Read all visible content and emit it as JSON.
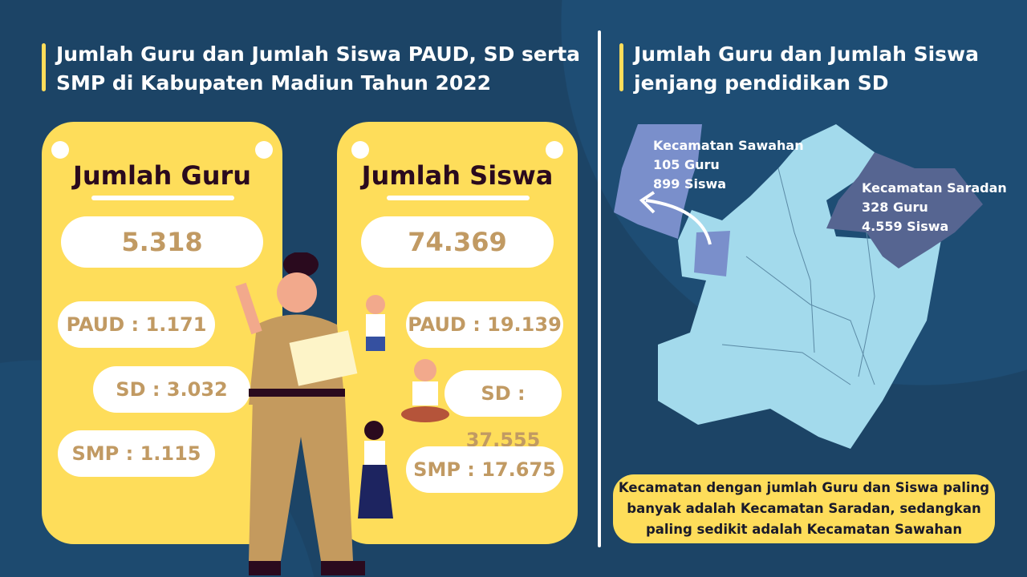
{
  "left": {
    "title_line1": "Jumlah Guru dan Jumlah Siswa PAUD, SD serta",
    "title_line2": "SMP di Kabupaten Madiun Tahun 2022",
    "guru": {
      "heading": "Jumlah Guru",
      "total": "5.318",
      "paud": "PAUD : 1.171",
      "sd": "SD : 3.032",
      "smp": "SMP : 1.115"
    },
    "siswa": {
      "heading": "Jumlah Siswa",
      "total": "74.369",
      "paud": "PAUD : 19.139",
      "sd": "SD : 37.555",
      "smp": "SMP : 17.675"
    }
  },
  "right": {
    "title_line1": "Jumlah Guru dan Jumlah Siswa",
    "title_line2": "jenjang pendidikan SD",
    "sawahan": {
      "name": "Kecamatan Sawahan",
      "guru": "105 Guru",
      "siswa": "899 Siswa"
    },
    "saradan": {
      "name": "Kecamatan Saradan",
      "guru": "328 Guru",
      "siswa": "4.559 Siswa"
    },
    "note_line1": "Kecamatan dengan jumlah Guru dan Siswa paling",
    "note_line2": "banyak adalah Kecamatan Saradan, sedangkan",
    "note_line3": "paling sedikit adalah Kecamatan Sawahan"
  },
  "colors": {
    "background": "#1c4466",
    "card": "#fedd5a",
    "value": "#c19a63",
    "map": "#a3daec",
    "sawahan": "#7a8fcb",
    "saradan": "#566591"
  }
}
